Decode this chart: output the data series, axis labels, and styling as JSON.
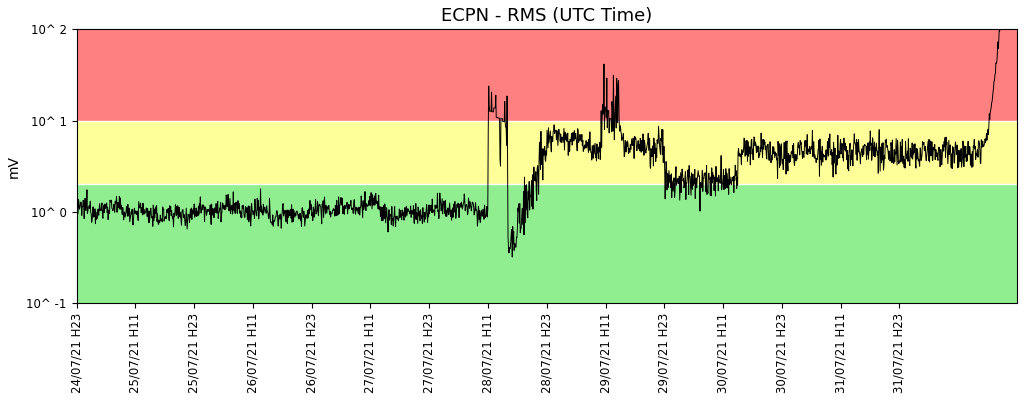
{
  "title": "ECPN - RMS (UTC Time)",
  "ylabel": "mV",
  "zone_green_min": 0.1,
  "zone_green_max": 2.0,
  "zone_yellow_max": 10.0,
  "zone_red_max": 100.0,
  "zone_green_color": "#90EE90",
  "zone_yellow_color": "#FFFF99",
  "zone_red_color": "#FF8080",
  "separator_color": "white",
  "line_color": "black",
  "line_width": 0.7,
  "background_color": "white",
  "title_fontsize": 13,
  "axis_fontsize": 10,
  "tick_fontsize": 8.5,
  "xtick_labels": [
    "24/07/21 H23",
    "25/07/21 H11",
    "25/07/21 H23",
    "26/07/21 H11",
    "26/07/21 H23",
    "27/07/21 H11",
    "27/07/21 H23",
    "28/07/21 H11",
    "28/07/21 H23",
    "29/07/21 H11",
    "29/07/21 H23",
    "30/07/21 H11",
    "30/07/21 H23",
    "31/07/21 H11",
    "31/07/21 H23"
  ],
  "total_hours": 192,
  "n_points": 2000
}
